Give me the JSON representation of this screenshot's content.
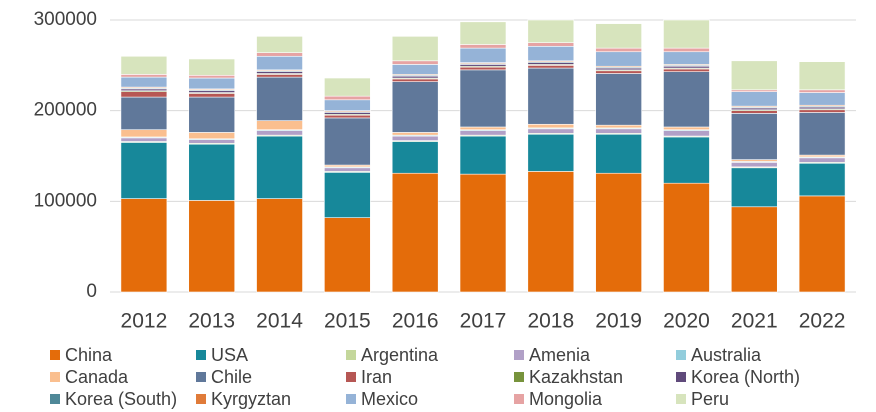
{
  "chart_data": {
    "type": "stacked_bar",
    "categories": [
      "2012",
      "2013",
      "2014",
      "2015",
      "2016",
      "2017",
      "2018",
      "2019",
      "2020",
      "2021",
      "2022"
    ],
    "ylim": [
      0,
      300000
    ],
    "yticks": [
      0,
      100000,
      200000,
      300000
    ],
    "grid": true,
    "series": [
      {
        "name": "China",
        "color": "#e46c0a",
        "values": [
          103000,
          101000,
          103000,
          82000,
          131000,
          130000,
          133000,
          131000,
          120000,
          94000,
          106000
        ]
      },
      {
        "name": "USA",
        "color": "#17889a",
        "values": [
          62000,
          62000,
          69000,
          50000,
          35000,
          42000,
          41000,
          43000,
          51000,
          43000,
          36000
        ]
      },
      {
        "name": "Argentina",
        "color": "#c4d79b",
        "values": [
          1000,
          1000,
          1000,
          1000,
          1000,
          1000,
          1000,
          1000,
          1000,
          1000,
          1000
        ]
      },
      {
        "name": "Amenia",
        "color": "#b1a0c7",
        "values": [
          4000,
          4000,
          5000,
          4000,
          5000,
          5000,
          5000,
          5000,
          6000,
          5000,
          5000
        ]
      },
      {
        "name": "Australia",
        "color": "#92cddc",
        "values": [
          1000,
          1000,
          1000,
          1000,
          1000,
          1000,
          1000,
          1000,
          1000,
          1000,
          1000
        ]
      },
      {
        "name": "Canada",
        "color": "#fabf8f",
        "values": [
          8000,
          7000,
          10000,
          2000,
          3000,
          3000,
          4000,
          3000,
          3000,
          2000,
          2000
        ]
      },
      {
        "name": "Chile",
        "color": "#60789a",
        "values": [
          36000,
          39000,
          48000,
          52000,
          56000,
          63000,
          62000,
          57000,
          61000,
          51000,
          47000
        ]
      },
      {
        "name": "Iran",
        "color": "#b65754",
        "values": [
          6000,
          4000,
          3000,
          3000,
          3000,
          3000,
          3000,
          3000,
          3000,
          3000,
          3000
        ]
      },
      {
        "name": "Kazakhstan",
        "color": "#77933c",
        "values": [
          1000,
          1000,
          1000,
          1000,
          1000,
          1000,
          1000,
          1000,
          1000,
          1000,
          1000
        ]
      },
      {
        "name": "Korea (North)",
        "color": "#604a7b",
        "values": [
          2000,
          2000,
          2000,
          2000,
          2000,
          2000,
          2000,
          2000,
          2000,
          2000,
          2000
        ]
      },
      {
        "name": "Korea (South)",
        "color": "#4f8898",
        "values": [
          1000,
          1000,
          1000,
          1000,
          1000,
          1000,
          1000,
          1000,
          1000,
          1000,
          1000
        ]
      },
      {
        "name": "Kyrgyztan",
        "color": "#e07b39",
        "values": [
          1000,
          1000,
          1000,
          1000,
          1000,
          1000,
          1000,
          1000,
          1000,
          1000,
          1000
        ]
      },
      {
        "name": "Mexico",
        "color": "#95b3d7",
        "values": [
          11000,
          12000,
          15000,
          12000,
          11000,
          16000,
          16000,
          16000,
          14000,
          16000,
          14000
        ]
      },
      {
        "name": "Mongolia",
        "color": "#e6a3a3",
        "values": [
          3000,
          3000,
          4000,
          4000,
          4000,
          4000,
          4000,
          4000,
          4000,
          2000,
          3000
        ]
      },
      {
        "name": "Peru",
        "color": "#d7e4bd",
        "values": [
          20000,
          18000,
          18000,
          20000,
          27000,
          25000,
          25000,
          27000,
          31000,
          32000,
          31000
        ]
      }
    ]
  }
}
